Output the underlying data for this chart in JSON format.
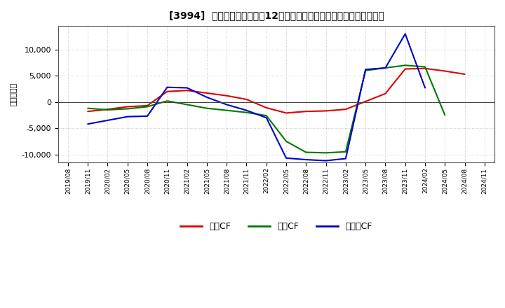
{
  "title": "[3994]  キャッシュフローの12か月移動合計の対前年同期増減額の推移",
  "ylabel": "（百万円）",
  "background_color": "#ffffff",
  "plot_bg_color": "#ffffff",
  "grid_color": "#bbbbbb",
  "ylim": [
    -11500,
    14500
  ],
  "yticks": [
    -10000,
    -5000,
    0,
    5000,
    10000
  ],
  "x_labels": [
    "2019/08",
    "2019/11",
    "2020/02",
    "2020/05",
    "2020/08",
    "2020/11",
    "2021/02",
    "2021/05",
    "2021/08",
    "2021/11",
    "2022/02",
    "2022/05",
    "2022/08",
    "2022/11",
    "2023/02",
    "2023/05",
    "2023/08",
    "2023/11",
    "2024/02",
    "2024/05",
    "2024/08",
    "2024/11"
  ],
  "series": {
    "営業CF": {
      "color": "#dd0000",
      "data": [
        null,
        -1800,
        -1400,
        -900,
        -700,
        2000,
        2200,
        1700,
        1200,
        500,
        -1100,
        -2100,
        -1800,
        -1700,
        -1400,
        100,
        1600,
        6300,
        6400,
        5900,
        5300,
        null
      ]
    },
    "投資CF": {
      "color": "#007700",
      "data": [
        null,
        -1200,
        -1500,
        -1300,
        -900,
        200,
        -500,
        -1200,
        -1600,
        -2000,
        -2600,
        -7500,
        -9600,
        -9700,
        -9500,
        6000,
        6500,
        7000,
        6700,
        -2500,
        null,
        null
      ]
    },
    "フリーCF": {
      "color": "#0000cc",
      "data": [
        null,
        -4200,
        -3500,
        -2800,
        -2700,
        2800,
        2700,
        900,
        -500,
        -1600,
        -3000,
        -10700,
        -11000,
        -11200,
        -10800,
        6200,
        6500,
        13000,
        2700,
        null,
        null,
        null
      ]
    }
  },
  "legend_labels": [
    "営業CF",
    "投資CF",
    "フリーCF"
  ],
  "legend_colors": [
    "#dd0000",
    "#007700",
    "#0000cc"
  ],
  "legend_display": [
    "営業CF",
    "投資CF",
    "フリーCF"
  ]
}
